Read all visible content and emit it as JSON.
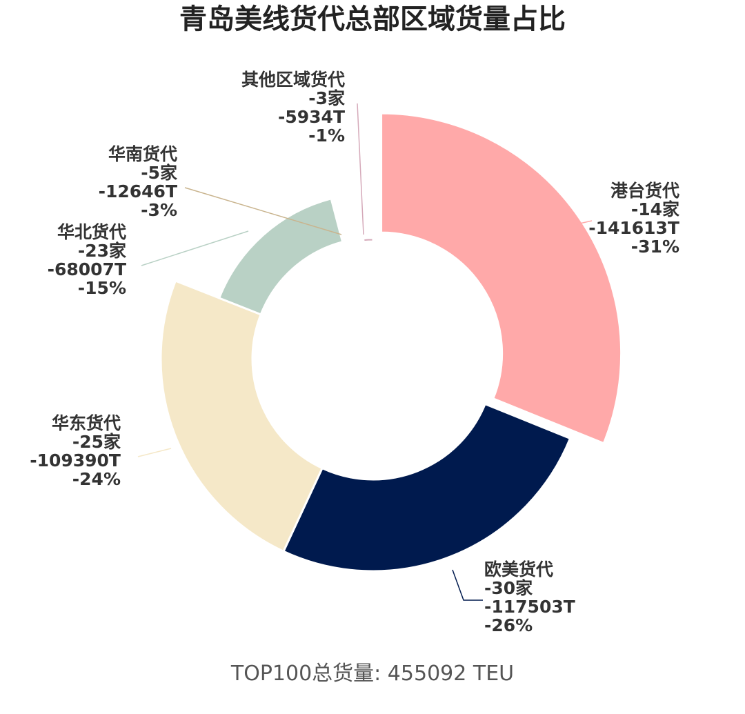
{
  "title": "青岛美线货代总部区域货量占比",
  "footer": "TOP100总货量: 455092 TEU",
  "chart_data": {
    "type": "pie",
    "donut": true,
    "title": "青岛美线货代总部区域货量占比",
    "series": [
      {
        "name": "港台货代",
        "count": "-14家",
        "volume": "-141613T",
        "percent": "-31%",
        "value": 141613,
        "color": "#FFA9A9"
      },
      {
        "name": "欧美货代",
        "count": "-30家",
        "volume": "-117503T",
        "percent": "-26%",
        "value": 117503,
        "color": "#001A4E"
      },
      {
        "name": "华东货代",
        "count": "-25家",
        "volume": "-109390T",
        "percent": "-24%",
        "value": 109390,
        "color": "#F5E8C8"
      },
      {
        "name": "华北货代",
        "count": "-23家",
        "volume": "-68007T",
        "percent": "-15%",
        "value": 68007,
        "color": "#B9D1C5"
      },
      {
        "name": "华南货代",
        "count": "-5家",
        "volume": "-12646T",
        "percent": "-3%",
        "value": 12646,
        "color": "#C9B48E"
      },
      {
        "name": "其他区域货代",
        "count": "-3家",
        "volume": "-5934T",
        "percent": "-1%",
        "value": 5934,
        "color": "#D5A9B9"
      }
    ]
  }
}
